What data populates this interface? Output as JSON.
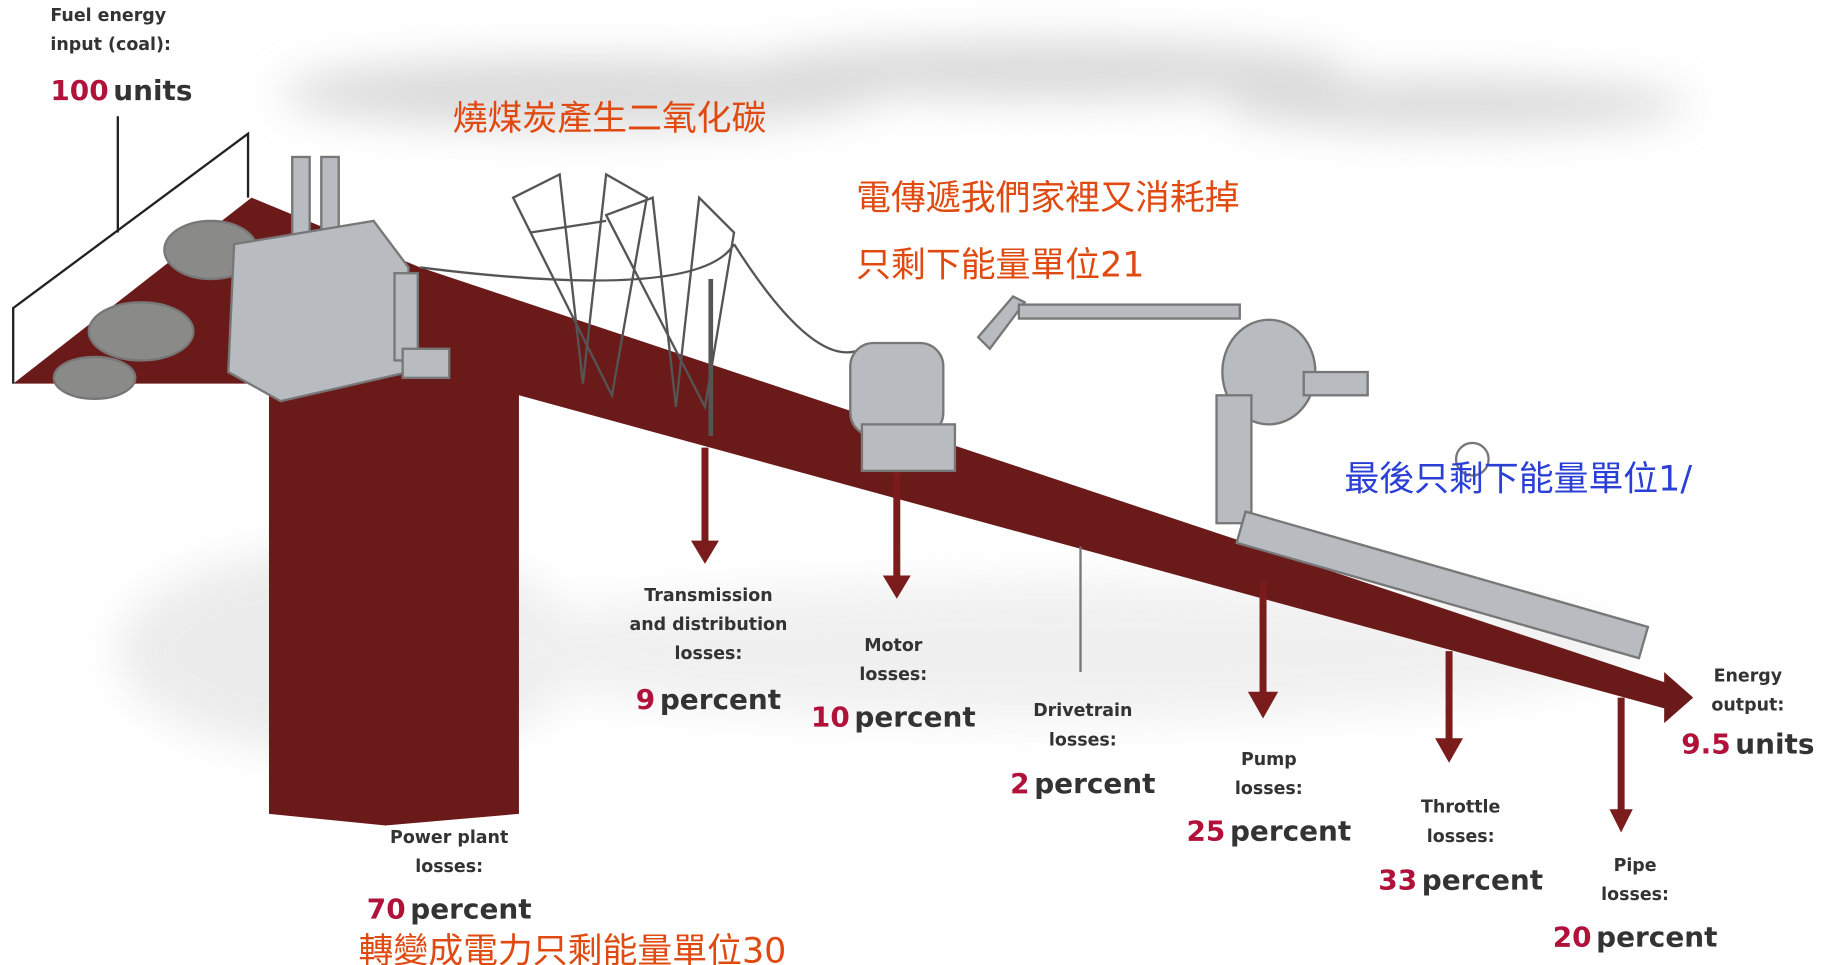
{
  "labels": [
    {
      "lines": [
        "Fuel energy",
        "input (coal):"
      ],
      "value": "100",
      "unit": "units"
    },
    {
      "lines": [
        "Power plant",
        "losses:"
      ],
      "value": "70",
      "unit": "percent"
    },
    {
      "lines": [
        "Transmission",
        "and distribution",
        "losses:"
      ],
      "value": "9",
      "unit": "percent"
    },
    {
      "lines": [
        "Motor",
        "losses:"
      ],
      "value": "10",
      "unit": "percent"
    },
    {
      "lines": [
        "Drivetrain",
        "losses:"
      ],
      "value": "2",
      "unit": "percent"
    },
    {
      "lines": [
        "Pump",
        "losses:"
      ],
      "value": "25",
      "unit": "percent"
    },
    {
      "lines": [
        "Throttle",
        "losses:"
      ],
      "value": "33",
      "unit": "percent"
    },
    {
      "lines": [
        "Pipe",
        "losses:"
      ],
      "value": "20",
      "unit": "percent"
    },
    {
      "lines": [
        "Energy",
        "output:"
      ],
      "value": "9.5",
      "unit": "units"
    }
  ],
  "annotations": [
    "燒煤炭產生二氧化碳",
    "電傳遞我們家裡又消耗掉",
    "只剩下能量單位21",
    "最後只剩下能量單位1/",
    "轉變成電力只剩能量單位30"
  ]
}
